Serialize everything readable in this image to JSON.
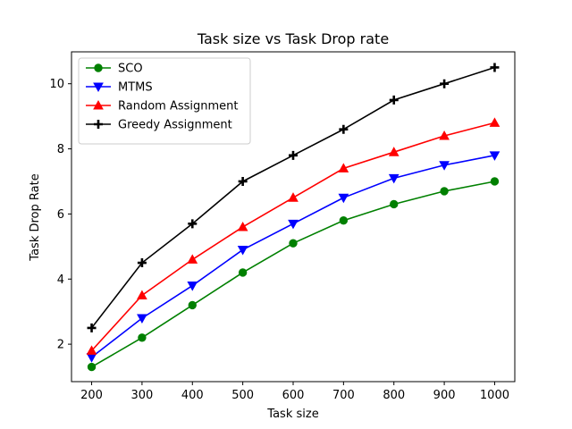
{
  "chart_data": {
    "type": "line",
    "title": "Task size vs Task Drop rate",
    "xlabel": "Task size",
    "ylabel": "Task Drop Rate",
    "x": [
      200,
      300,
      400,
      500,
      600,
      700,
      800,
      900,
      1000
    ],
    "xticks": [
      200,
      300,
      400,
      500,
      600,
      700,
      800,
      900,
      1000
    ],
    "yticks": [
      2,
      4,
      6,
      8,
      10
    ],
    "xlim": [
      160,
      1040
    ],
    "ylim": [
      0.85,
      10.98
    ],
    "grid": false,
    "legend_position": "top-left",
    "series": [
      {
        "name": "SCO",
        "color": "#008000",
        "marker": "circle",
        "values": [
          1.3,
          2.2,
          3.2,
          4.2,
          5.1,
          5.8,
          6.3,
          6.7,
          7.0
        ]
      },
      {
        "name": "MTMS",
        "color": "#0000ff",
        "marker": "triangle-down",
        "values": [
          1.6,
          2.8,
          3.8,
          4.9,
          5.7,
          6.5,
          7.1,
          7.5,
          7.8
        ]
      },
      {
        "name": "Random Assignment",
        "color": "#ff0000",
        "marker": "triangle-up",
        "values": [
          1.8,
          3.5,
          4.6,
          5.6,
          6.5,
          7.4,
          7.9,
          8.4,
          8.8
        ]
      },
      {
        "name": "Greedy Assignment",
        "color": "#000000",
        "marker": "plus",
        "values": [
          2.5,
          4.5,
          5.7,
          7.0,
          7.8,
          8.6,
          9.5,
          10.0,
          10.5
        ]
      }
    ]
  }
}
